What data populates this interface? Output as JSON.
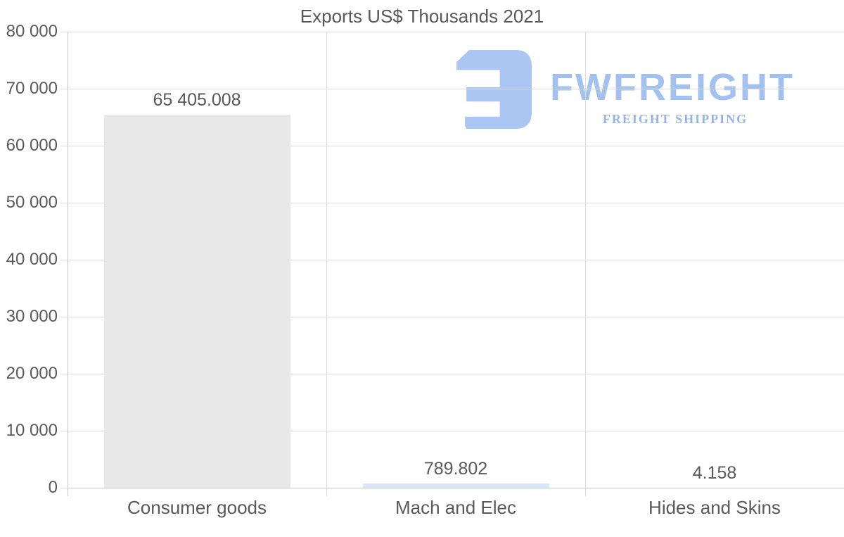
{
  "title": "Exports US$ Thousands 2021",
  "watermark": {
    "brand": "FWFREIGHT",
    "tagline": "FREIGHT SHIPPING",
    "logo_color": "#abc6f2",
    "brand_color": "#a3c1ee",
    "tagline_color": "#95b3e6"
  },
  "colors": {
    "text": "#595959",
    "grid": "#dbdbdb",
    "axis": "#c6c6c6",
    "background": "#ffffff"
  },
  "chart_data": {
    "type": "bar",
    "title": "Exports US$ Thousands 2021",
    "xlabel": "",
    "ylabel": "",
    "categories": [
      "Consumer goods",
      "Mach and Elec",
      "Hides and Skins"
    ],
    "values": [
      65405.008,
      789.802,
      4.158
    ],
    "value_labels": [
      "65 405.008",
      "789.802",
      "4.158"
    ],
    "bar_colors": [
      "#e8e8e8",
      "#d9e8f8",
      "#d9e8f8"
    ],
    "ylim": [
      0,
      80000
    ],
    "ytick_interval": 10000,
    "ytick_labels": [
      "0",
      "10 000",
      "20 000",
      "30 000",
      "40 000",
      "50 000",
      "60 000",
      "70 000",
      "80 000"
    ],
    "grid": true,
    "legend": false,
    "legend_position": "none"
  }
}
